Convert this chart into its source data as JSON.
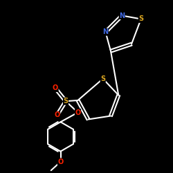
{
  "bg_color": "#000000",
  "S_color": "#DAA520",
  "N_color": "#4169E1",
  "O_color": "#FF2200",
  "bond_color": "#FFFFFF",
  "figsize": [
    2.5,
    2.5
  ],
  "dpi": 100,
  "xlim": [
    0,
    10
  ],
  "ylim": [
    0,
    10
  ]
}
